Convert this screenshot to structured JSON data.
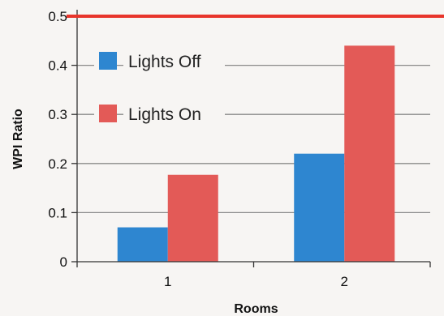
{
  "chart_data": {
    "type": "bar",
    "categories": [
      "1",
      "2"
    ],
    "series": [
      {
        "name": "Lights Off",
        "values": [
          0.07,
          0.22
        ],
        "color": "#2e86d0"
      },
      {
        "name": "Lights On",
        "values": [
          0.177,
          0.44
        ],
        "color": "#e35a57"
      }
    ],
    "xlabel": "Rooms",
    "ylabel": "WPI Ratio",
    "ylim": [
      0,
      0.5
    ],
    "yticks": [
      "0",
      "0.1",
      "0.2",
      "0.3",
      "0.4",
      "0.5"
    ],
    "threshold": {
      "value": 0.5,
      "color": "#e8352b"
    },
    "grid": true,
    "legend_placement": "top-left"
  }
}
